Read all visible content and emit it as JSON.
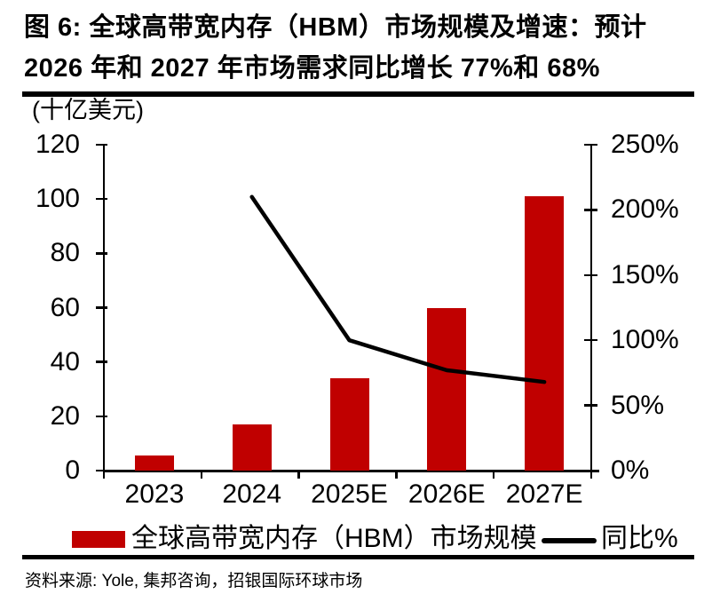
{
  "title": {
    "line1": "图 6: 全球高带宽内存（HBM）市场规模及增速：预计",
    "line2": "2026 年和 2027 年市场需求同比增长 77%和 68%"
  },
  "legend": {
    "bar_label": "全球高带宽内存（HBM）市场规模",
    "line_label": "同比%"
  },
  "source": "资料来源: Yole, 集邦咨询，招银国际环球市场",
  "colors": {
    "bar": "#c00000",
    "line": "#000000",
    "text": "#000000"
  },
  "chart_data": {
    "type": "combo",
    "categories": [
      "2023",
      "2024",
      "2025E",
      "2026E",
      "2027E"
    ],
    "series": [
      {
        "name": "全球高带宽内存（HBM）市场规模",
        "type": "bar",
        "axis": "left",
        "color": "#c00000",
        "values": [
          5.5,
          17,
          34,
          60,
          101
        ]
      },
      {
        "name": "同比%",
        "type": "line",
        "axis": "right",
        "color": "#000000",
        "values": [
          null,
          210,
          100,
          77,
          68
        ]
      }
    ],
    "left_axis": {
      "label": "(十亿美元)",
      "min": 0,
      "max": 120,
      "step": 20,
      "ticks": [
        120,
        100,
        80,
        60,
        40,
        20,
        0
      ],
      "suffix": ""
    },
    "right_axis": {
      "min": 0,
      "max": 250,
      "step": 50,
      "ticks": [
        250,
        200,
        150,
        100,
        50,
        0
      ],
      "suffix": "%"
    },
    "grid": false,
    "legend_position": "bottom"
  }
}
